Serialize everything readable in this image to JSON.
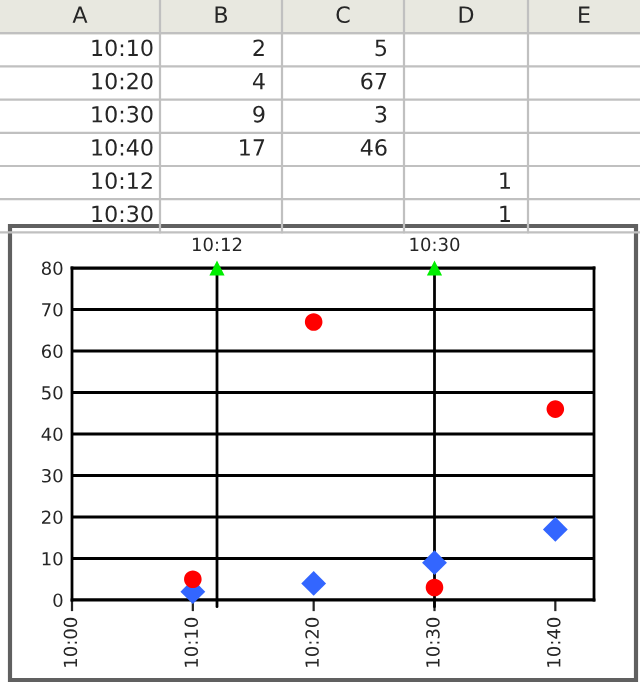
{
  "chart_data": {
    "type": "scatter",
    "x": [
      10.1666667,
      10.3333333,
      10.5,
      10.6666667
    ],
    "series": [
      {
        "color": "#3366ff",
        "marker": "diamond",
        "values": [
          2,
          4,
          9,
          17
        ]
      },
      {
        "color": "#ff0000",
        "marker": "circle",
        "values": [
          5,
          67,
          3,
          46
        ]
      },
      {
        "color": "#00ee00",
        "marker": "triangle",
        "x": [
          10.2,
          10.5
        ],
        "values": [
          80,
          80
        ]
      }
    ],
    "xlim": [
      10.0,
      10.72
    ],
    "xticks": [
      {
        "value": 10.0,
        "label": "10:00"
      },
      {
        "value": 10.1666667,
        "label": "10:10"
      },
      {
        "value": 10.3333333,
        "label": "10:20"
      },
      {
        "value": 10.5,
        "label": "10:30"
      },
      {
        "value": 10.6666667,
        "label": "10:40"
      }
    ],
    "ylim": [
      0,
      80
    ],
    "yticks": [
      0,
      10,
      20,
      30,
      40,
      50,
      60,
      70,
      80
    ],
    "grid": "y",
    "ref_lines": [
      {
        "axis": "x",
        "value": 10.2,
        "label": "10:12",
        "color": "#000000"
      },
      {
        "axis": "x",
        "value": 10.5,
        "label": "10:30",
        "color": "#000000"
      }
    ],
    "annotations": [
      "A",
      "B",
      "C",
      "D",
      "E",
      "10:10",
      "2",
      "5",
      "10:20",
      "4",
      "67",
      "10:30",
      "9",
      "3",
      "10:40",
      "17",
      "46",
      "10:12",
      "1",
      "10:30",
      "1"
    ]
  }
}
